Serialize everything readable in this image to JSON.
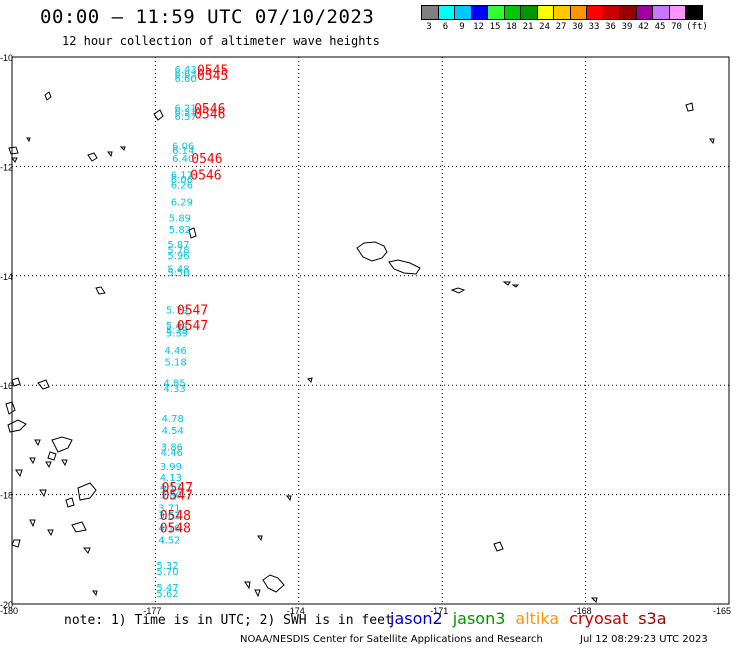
{
  "header": {
    "title": "00:00 – 11:59 UTC 07/10/2023",
    "subtitle": "12 hour collection of altimeter wave heights"
  },
  "legend": {
    "colors": [
      "#808080",
      "#00ffff",
      "#00c8ff",
      "#0000ff",
      "#32ff32",
      "#00c800",
      "#009600",
      "#ffff00",
      "#ffc800",
      "#ff9600",
      "#ff0000",
      "#c80000",
      "#960000",
      "#a000a0",
      "#c878ff",
      "#ff96ff",
      "#000000"
    ],
    "labels": [
      "3",
      "6",
      "9",
      "12",
      "15",
      "18",
      "21",
      "24",
      "27",
      "30",
      "33",
      "36",
      "39",
      "42",
      "45",
      "70",
      "(ft)"
    ]
  },
  "map": {
    "lat_ticks": [
      "-10",
      "-12",
      "-14",
      "-16",
      "-18",
      "-20"
    ],
    "lon_ticks": [
      "-180",
      "-177",
      "-174",
      "-171",
      "-168",
      "-165"
    ],
    "lat_range": [
      -20,
      -10
    ],
    "lon_range": [
      -180,
      -165
    ],
    "grid": true,
    "swh_labels": [
      {
        "lon": -176.6,
        "lat": -10.22,
        "text": "6.43"
      },
      {
        "lon": -176.6,
        "lat": -10.3,
        "text": "6.63"
      },
      {
        "lon": -176.6,
        "lat": -10.38,
        "text": "6.60"
      },
      {
        "lon": -176.6,
        "lat": -10.92,
        "text": "6.21"
      },
      {
        "lon": -176.6,
        "lat": -11.0,
        "text": "6.31"
      },
      {
        "lon": -176.6,
        "lat": -11.08,
        "text": "6.57"
      },
      {
        "lon": -176.65,
        "lat": -11.62,
        "text": "6.06"
      },
      {
        "lon": -176.65,
        "lat": -11.7,
        "text": "6.14"
      },
      {
        "lon": -176.65,
        "lat": -11.85,
        "text": "6.40"
      },
      {
        "lon": -176.68,
        "lat": -12.15,
        "text": "6.17"
      },
      {
        "lon": -176.68,
        "lat": -12.23,
        "text": "6.06"
      },
      {
        "lon": -176.68,
        "lat": -12.33,
        "text": "6.26"
      },
      {
        "lon": -176.68,
        "lat": -12.64,
        "text": "6.29"
      },
      {
        "lon": -176.72,
        "lat": -12.93,
        "text": "5.89"
      },
      {
        "lon": -176.72,
        "lat": -13.14,
        "text": "5.82"
      },
      {
        "lon": -176.75,
        "lat": -13.42,
        "text": "5.87"
      },
      {
        "lon": -176.75,
        "lat": -13.52,
        "text": "5.78"
      },
      {
        "lon": -176.75,
        "lat": -13.62,
        "text": "5.96"
      },
      {
        "lon": -176.75,
        "lat": -13.87,
        "text": "5.48"
      },
      {
        "lon": -176.75,
        "lat": -13.93,
        "text": "5.50"
      },
      {
        "lon": -176.78,
        "lat": -14.62,
        "text": "5.79"
      },
      {
        "lon": -176.78,
        "lat": -14.9,
        "text": "5.44"
      },
      {
        "lon": -176.78,
        "lat": -14.98,
        "text": "5.29"
      },
      {
        "lon": -176.78,
        "lat": -15.04,
        "text": "5.39"
      },
      {
        "lon": -176.81,
        "lat": -15.36,
        "text": "4.46"
      },
      {
        "lon": -176.81,
        "lat": -15.57,
        "text": "5.18"
      },
      {
        "lon": -176.83,
        "lat": -15.95,
        "text": "4.85"
      },
      {
        "lon": -176.83,
        "lat": -16.05,
        "text": "4.33"
      },
      {
        "lon": -176.87,
        "lat": -16.6,
        "text": "4.78"
      },
      {
        "lon": -176.87,
        "lat": -16.82,
        "text": "4.54"
      },
      {
        "lon": -176.89,
        "lat": -17.12,
        "text": "3.86"
      },
      {
        "lon": -176.89,
        "lat": -17.22,
        "text": "4.46"
      },
      {
        "lon": -176.91,
        "lat": -17.48,
        "text": "3.99"
      },
      {
        "lon": -176.91,
        "lat": -17.68,
        "text": "4.13"
      },
      {
        "lon": -176.91,
        "lat": -17.85,
        "text": "4.13"
      },
      {
        "lon": -176.91,
        "lat": -18.0,
        "text": "3.80"
      },
      {
        "lon": -176.94,
        "lat": -18.24,
        "text": "3.71"
      },
      {
        "lon": -176.94,
        "lat": -18.37,
        "text": "3.62"
      },
      {
        "lon": -176.94,
        "lat": -18.6,
        "text": "4.16"
      },
      {
        "lon": -176.94,
        "lat": -18.82,
        "text": "4.52"
      },
      {
        "lon": -176.98,
        "lat": -19.29,
        "text": "5.32"
      },
      {
        "lon": -176.98,
        "lat": -19.4,
        "text": "5.70"
      },
      {
        "lon": -176.98,
        "lat": -19.69,
        "text": "5.47"
      },
      {
        "lon": -176.98,
        "lat": -19.8,
        "text": "5.62"
      }
    ],
    "time_labels": [
      {
        "lon": -176.13,
        "lat": -10.23,
        "text": "0545"
      },
      {
        "lon": -176.13,
        "lat": -10.33,
        "text": "0545"
      },
      {
        "lon": -176.19,
        "lat": -10.93,
        "text": "0546"
      },
      {
        "lon": -176.19,
        "lat": -11.03,
        "text": "0546"
      },
      {
        "lon": -176.25,
        "lat": -11.85,
        "text": "0546"
      },
      {
        "lon": -176.27,
        "lat": -12.15,
        "text": "0546"
      },
      {
        "lon": -176.55,
        "lat": -14.62,
        "text": "0547"
      },
      {
        "lon": -176.55,
        "lat": -14.9,
        "text": "0547"
      },
      {
        "lon": -176.87,
        "lat": -17.86,
        "text": "0547"
      },
      {
        "lon": -176.87,
        "lat": -18.0,
        "text": "0547"
      },
      {
        "lon": -176.91,
        "lat": -18.37,
        "text": "0548"
      },
      {
        "lon": -176.91,
        "lat": -18.6,
        "text": "0548"
      }
    ]
  },
  "note": "note: 1) Time is in UTC; 2) SWH is in feet",
  "satellites": [
    {
      "name": "jason2",
      "color": "#0000c8"
    },
    {
      "name": "jason3",
      "color": "#009600"
    },
    {
      "name": "altika",
      "color": "#ff9600"
    },
    {
      "name": "cryosat",
      "color": "#c80000"
    },
    {
      "name": "s3a",
      "color": "#960000"
    }
  ],
  "footer": {
    "credit": "NOAA/NESDIS Center for Satellite Applications and Research",
    "timestamp": "Jul 12 08:29:23 UTC 2023"
  }
}
